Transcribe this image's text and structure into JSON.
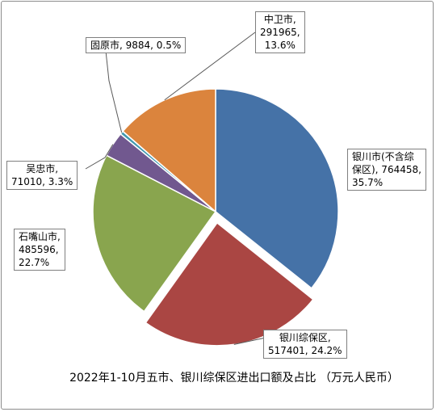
{
  "chart_data": {
    "type": "pie",
    "title": "2022年1-10月五市、银川综保区进出口额及占比 （万元人民币）",
    "slices": [
      {
        "name": "银川市(不含综保区)",
        "value": 764458,
        "percent": "35.7%",
        "color": "#4572A7",
        "label_lines": [
          "银川市(不含综",
          "保区), 764458,",
          "35.7%"
        ]
      },
      {
        "name": "银川综保区",
        "value": 517401,
        "percent": "24.2%",
        "color": "#AA4643",
        "label_lines": [
          "银川综保区,",
          "517401, 24.2%"
        ]
      },
      {
        "name": "石嘴山市",
        "value": 485596,
        "percent": "22.7%",
        "color": "#89A54E",
        "label_lines": [
          "石嘴山市,",
          "485596,",
          "22.7%"
        ]
      },
      {
        "name": "吴忠市",
        "value": 71010,
        "percent": "3.3%",
        "color": "#71588F",
        "label_lines": [
          "吴忠市,",
          "71010, 3.3%"
        ]
      },
      {
        "name": "固原市",
        "value": 9884,
        "percent": "0.5%",
        "color": "#4198AF",
        "label_lines": [
          "固原市, 9884, 0.5%"
        ]
      },
      {
        "name": "中卫市",
        "value": 291965,
        "percent": "13.6%",
        "color": "#DB843D",
        "label_lines": [
          "中卫市,",
          "291965,",
          "13.6%"
        ]
      }
    ],
    "start": "12 o'clock",
    "direction": "clockwise",
    "exploded": [
      "银川综保区"
    ]
  }
}
